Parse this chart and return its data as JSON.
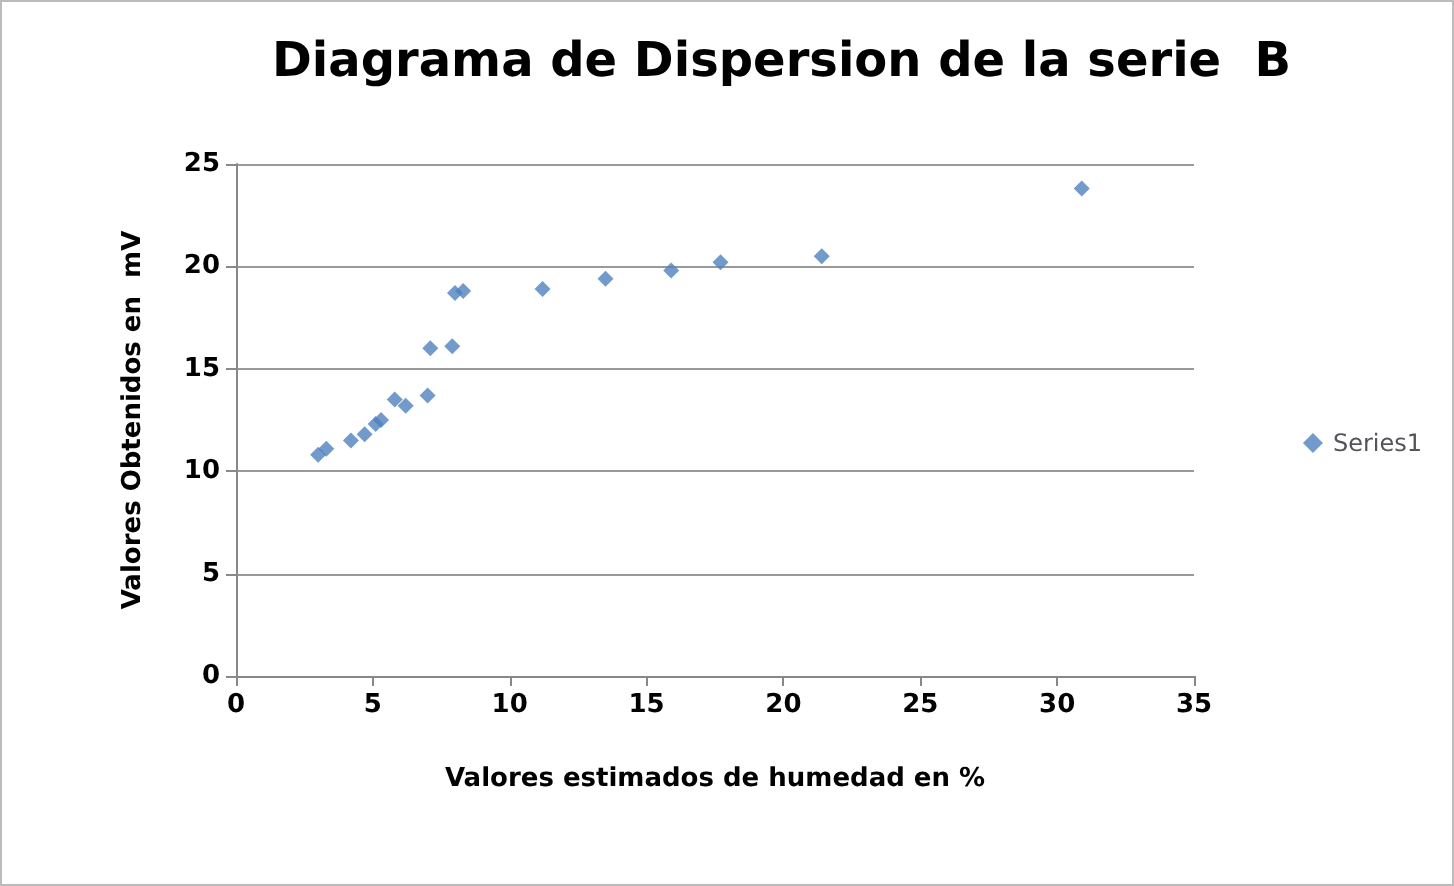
{
  "chart_data": {
    "type": "scatter",
    "title": "Diagrama de Dispersion de la serie  B",
    "xlabel": "Valores estimados de humedad en %",
    "ylabel": "Valores Obtenidos en  mV",
    "series": [
      {
        "name": "Series1",
        "color": "#4f81bd",
        "x": [
          3.0,
          3.3,
          4.2,
          4.7,
          5.1,
          5.3,
          5.8,
          6.2,
          7.0,
          7.1,
          7.9,
          8.0,
          8.3,
          11.2,
          13.5,
          15.9,
          17.7,
          21.4,
          30.9
        ],
        "values": [
          10.8,
          11.1,
          11.5,
          11.8,
          12.3,
          12.5,
          13.5,
          13.2,
          13.7,
          16.0,
          16.1,
          18.7,
          18.8,
          18.9,
          19.4,
          19.8,
          20.2,
          20.5,
          23.8
        ]
      }
    ],
    "xlim": [
      0,
      35
    ],
    "xticks": [
      0,
      5,
      10,
      15,
      20,
      25,
      30,
      35
    ],
    "ylim": [
      0,
      25
    ],
    "yticks": [
      0,
      5,
      10,
      15,
      20,
      25
    ],
    "grid": "y",
    "legend": "right",
    "marker": "diamond"
  }
}
